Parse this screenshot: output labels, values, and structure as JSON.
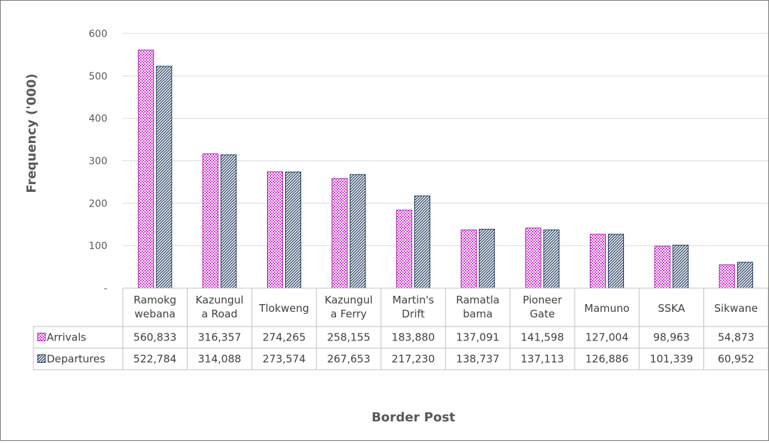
{
  "chart_data": {
    "type": "bar",
    "title": "",
    "ylabel": "Frequency ('000)",
    "xlabel": "Border Post",
    "ylim": [
      0,
      600
    ],
    "yticks": [
      0,
      100,
      200,
      300,
      400,
      500,
      600
    ],
    "ytick_labels": [
      "-",
      "100",
      "200",
      "300",
      "400",
      "500",
      "600"
    ],
    "categories": [
      [
        "Ramokg",
        "webana"
      ],
      [
        "Kazungul",
        "a Road"
      ],
      [
        "Tlokweng"
      ],
      [
        "Kazungul",
        "a Ferry"
      ],
      [
        "Martin's",
        "Drift"
      ],
      [
        "Ramatla",
        "bama"
      ],
      [
        "Pioneer",
        "Gate"
      ],
      [
        "Mamuno"
      ],
      [
        "SSKA"
      ],
      [
        "Sikwane"
      ]
    ],
    "series": [
      {
        "name": "Arrivals",
        "color": "#d63ed6",
        "pattern": "dots",
        "values": [
          560833,
          316357,
          274265,
          258155,
          183880,
          137091,
          141598,
          127004,
          98963,
          54873
        ],
        "labels": [
          "560,833",
          "316,357",
          "274,265",
          "258,155",
          "183,880",
          "137,091",
          "141,598",
          "127,004",
          "98,963",
          "54,873"
        ]
      },
      {
        "name": "Departures",
        "color": "#1f3a5c",
        "pattern": "diagonal",
        "values": [
          522784,
          314088,
          273574,
          267653,
          217230,
          138737,
          137113,
          126886,
          101339,
          60952
        ],
        "labels": [
          "522,784",
          "314,088",
          "273,574",
          "267,653",
          "217,230",
          "138,737",
          "137,113",
          "126,886",
          "101,339",
          "60,952"
        ]
      }
    ],
    "grid": true,
    "data_table": true
  }
}
